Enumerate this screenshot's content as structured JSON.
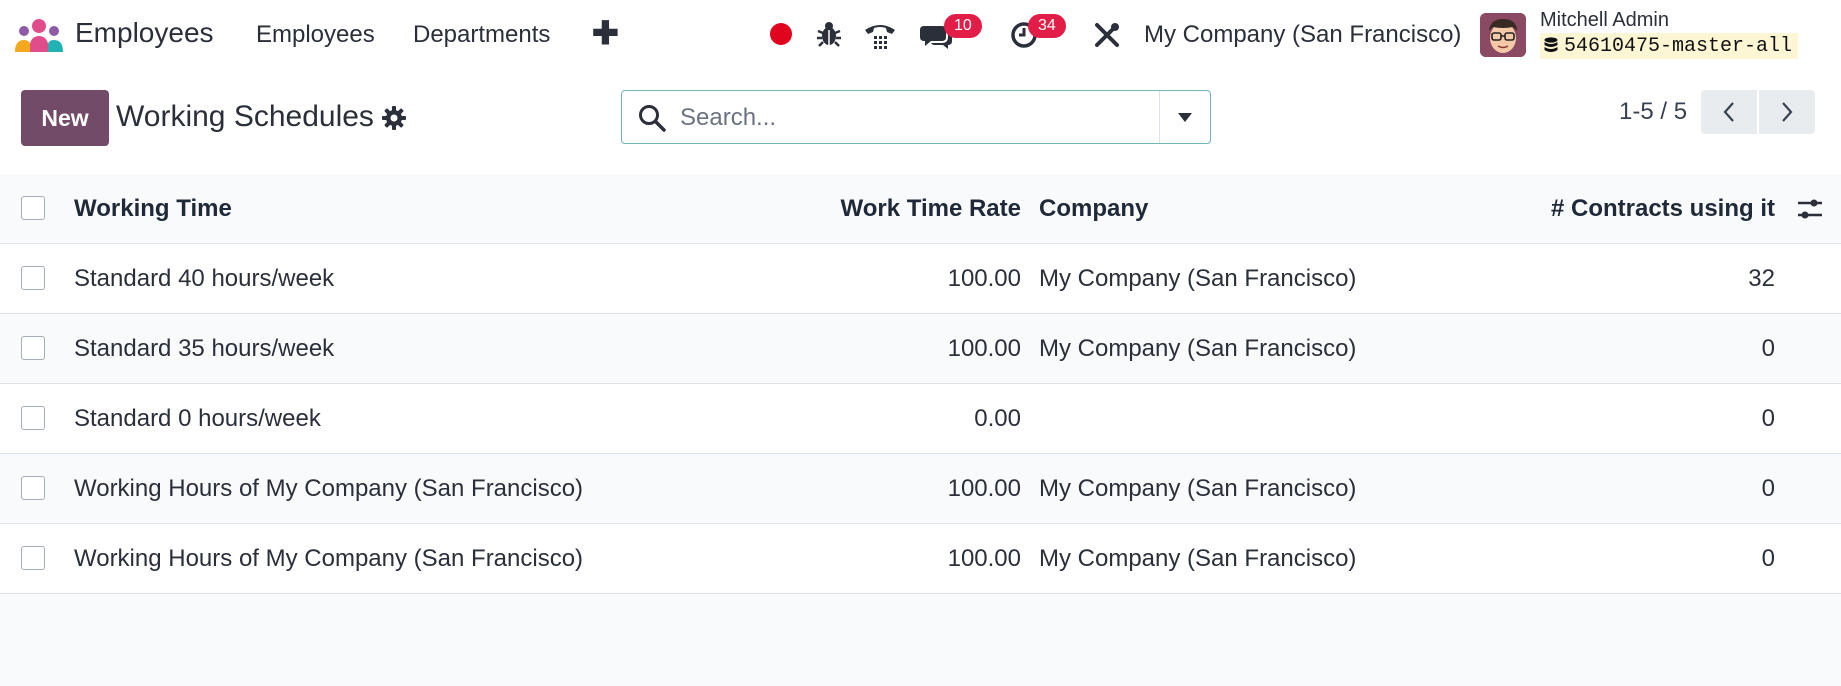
{
  "navbar": {
    "app_name": "Employees",
    "menu": [
      "Employees",
      "Departments"
    ],
    "plus": "✚",
    "messages_count": "10",
    "activities_count": "34",
    "company": "My Company (San Francisco)",
    "user_name": "Mitchell Admin",
    "database": "54610475-master-all",
    "record_color": "#e0041f",
    "badge_color": "#e11d48"
  },
  "control_panel": {
    "new_label": "New",
    "title": "Working Schedules",
    "search_placeholder": "Search...",
    "pager": "1-5 / 5"
  },
  "table": {
    "headers": {
      "name": "Working Time",
      "rate": "Work Time Rate",
      "company": "Company",
      "contracts": "# Contracts using it"
    },
    "rows": [
      {
        "name": "Standard 40 hours/week",
        "rate": "100.00",
        "company": "My Company (San Francisco)",
        "contracts": "32"
      },
      {
        "name": "Standard 35 hours/week",
        "rate": "100.00",
        "company": "My Company (San Francisco)",
        "contracts": "0"
      },
      {
        "name": "Standard 0 hours/week",
        "rate": "0.00",
        "company": "",
        "contracts": "0"
      },
      {
        "name": "Working Hours of My Company (San Francisco)",
        "rate": "100.00",
        "company": "My Company (San Francisco)",
        "contracts": "0"
      },
      {
        "name": "Working Hours of My Company (San Francisco)",
        "rate": "100.00",
        "company": "My Company (San Francisco)",
        "contracts": "0"
      }
    ]
  },
  "colors": {
    "brand": "#714b67",
    "search_border": "#6fb5bb"
  }
}
